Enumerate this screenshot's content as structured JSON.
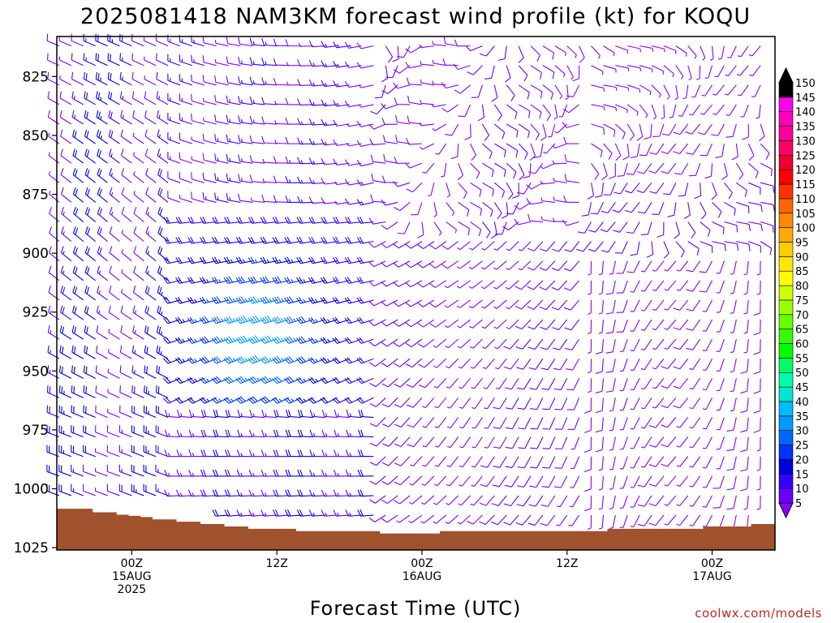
{
  "title": "2025081418 NAM3KM forecast wind profile (kt) for KOQU",
  "x_axis_title": "Forecast Time (UTC)",
  "credit": "coolwx.com/models",
  "colorbar": {
    "labels": [
      "5",
      "10",
      "15",
      "20",
      "25",
      "30",
      "35",
      "40",
      "45",
      "50",
      "55",
      "60",
      "65",
      "70",
      "75",
      "80",
      "85",
      "90",
      "95",
      "100",
      "105",
      "110",
      "115",
      "120",
      "125",
      "130",
      "135",
      "140",
      "145",
      "150"
    ],
    "colors": [
      "#8800ff",
      "#6600ff",
      "#3300ff",
      "#0000dd",
      "#0033ff",
      "#0066ff",
      "#0099ff",
      "#00bbff",
      "#00e6d0",
      "#00ffaa",
      "#00ff66",
      "#00ff00",
      "#33ff00",
      "#66ff00",
      "#99ff00",
      "#ccff00",
      "#ffff00",
      "#ffe600",
      "#ffcc00",
      "#ffaa00",
      "#ff8800",
      "#ff6600",
      "#ff3300",
      "#ff0000",
      "#ee0033",
      "#ff0066",
      "#ff0099",
      "#ff00bb",
      "#ff00ee",
      "#000000"
    ]
  },
  "chart_data": {
    "type": "wind-barb time-height cross section",
    "title": "2025081418 NAM3KM forecast wind profile (kt) for KOQU",
    "xlabel": "Forecast Time (UTC)",
    "ylabel": "",
    "y_ticks": [
      "825",
      "850",
      "875",
      "900",
      "925",
      "950",
      "975",
      "1000",
      "1025"
    ],
    "ylim": [
      808,
      1026
    ],
    "y_direction": "pressure increasing downward",
    "x_ticks": [
      {
        "hour": 6,
        "lines": [
          "00Z",
          "15AUG",
          "2025"
        ]
      },
      {
        "hour": 18,
        "lines": [
          "12Z"
        ]
      },
      {
        "hour": 30,
        "lines": [
          "00Z",
          "16AUG"
        ]
      },
      {
        "hour": 42,
        "lines": [
          "12Z"
        ]
      },
      {
        "hour": 54,
        "lines": [
          "00Z",
          "17AUG"
        ]
      }
    ],
    "xlim_hours_from_init": [
      -0.2,
      59.2
    ],
    "units": "kt",
    "surface_pressure_hPa": [
      1008.5,
      1008.5,
      1008.5,
      1010,
      1010,
      1011,
      1011.5,
      1012,
      1013,
      1013,
      1014,
      1014,
      1015,
      1015,
      1016,
      1016,
      1017,
      1017,
      1017,
      1017,
      1018,
      1018,
      1018,
      1018,
      1018,
      1018,
      1018,
      1019,
      1019,
      1019,
      1019,
      1019,
      1018,
      1018,
      1018,
      1018,
      1018,
      1018,
      1018,
      1018,
      1018,
      1018,
      1018,
      1018,
      1018,
      1018,
      1017,
      1017,
      1017,
      1017,
      1017,
      1017,
      1017,
      1017,
      1016,
      1016,
      1016,
      1016,
      1015,
      1015
    ],
    "wind_field_summary": [
      {
        "period": "14 18Z - 15 03Z",
        "levels": "surface-825",
        "speed_kt": "10-25",
        "direction": "northwest"
      },
      {
        "period": "15 06Z - 15 21Z",
        "levels": "900-950",
        "speed_kt": "30-45",
        "direction": "west to west-southwest",
        "note": "strongest winds of the period"
      },
      {
        "period": "15 06Z - 15 21Z",
        "levels": "975-1010",
        "speed_kt": "15-25",
        "direction": "west"
      },
      {
        "period": "16 00Z - 16 12Z",
        "levels": "825-875",
        "speed_kt": "5-15",
        "direction": "variable, backing"
      },
      {
        "period": "16 00Z - 17 06Z",
        "levels": "900-1010",
        "speed_kt": "5-15",
        "direction": "southwest to south"
      }
    ]
  }
}
